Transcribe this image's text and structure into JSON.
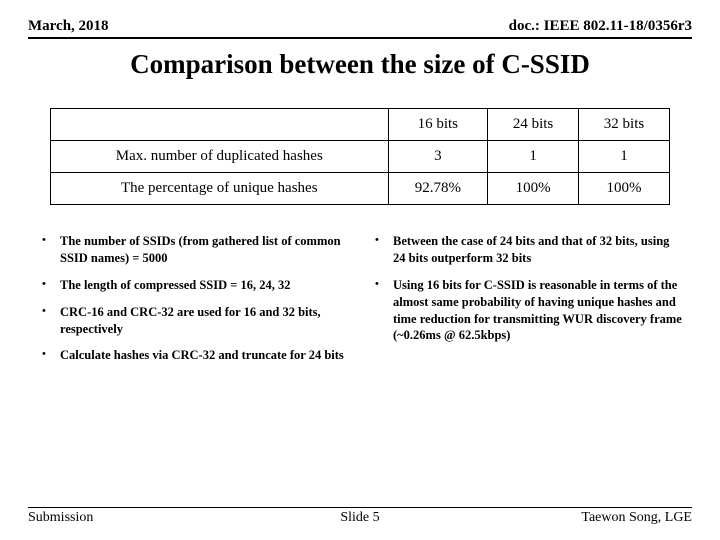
{
  "header": {
    "left": "March, 2018",
    "right": "doc.: IEEE 802.11-18/0356r3"
  },
  "title": "Comparison between the size of C-SSID",
  "table": {
    "col_headers": [
      "16 bits",
      "24 bits",
      "32 bits"
    ],
    "rows": [
      {
        "label": "Max. number of duplicated hashes",
        "cells": [
          "3",
          "1",
          "1"
        ]
      },
      {
        "label": "The percentage of unique hashes",
        "cells": [
          "92.78%",
          "100%",
          "100%"
        ]
      }
    ]
  },
  "left_bullets": [
    "The number of SSIDs (from gathered list of common SSID names) = 5000",
    "The length of compressed SSID = 16, 24, 32",
    "CRC-16 and CRC-32 are used for 16 and 32 bits, respectively",
    "Calculate hashes via CRC-32 and truncate for 24 bits"
  ],
  "right_bullets": [
    "Between the case of 24 bits and that of 32 bits, using 24 bits outperform 32 bits",
    "Using 16 bits for C-SSID is reasonable in terms of the almost same probability of having unique hashes and time reduction for transmitting WUR discovery frame (~0.26ms @ 62.5kbps)"
  ],
  "footer": {
    "left": "Submission",
    "center": "Slide 5",
    "right": "Taewon Song, LGE"
  }
}
